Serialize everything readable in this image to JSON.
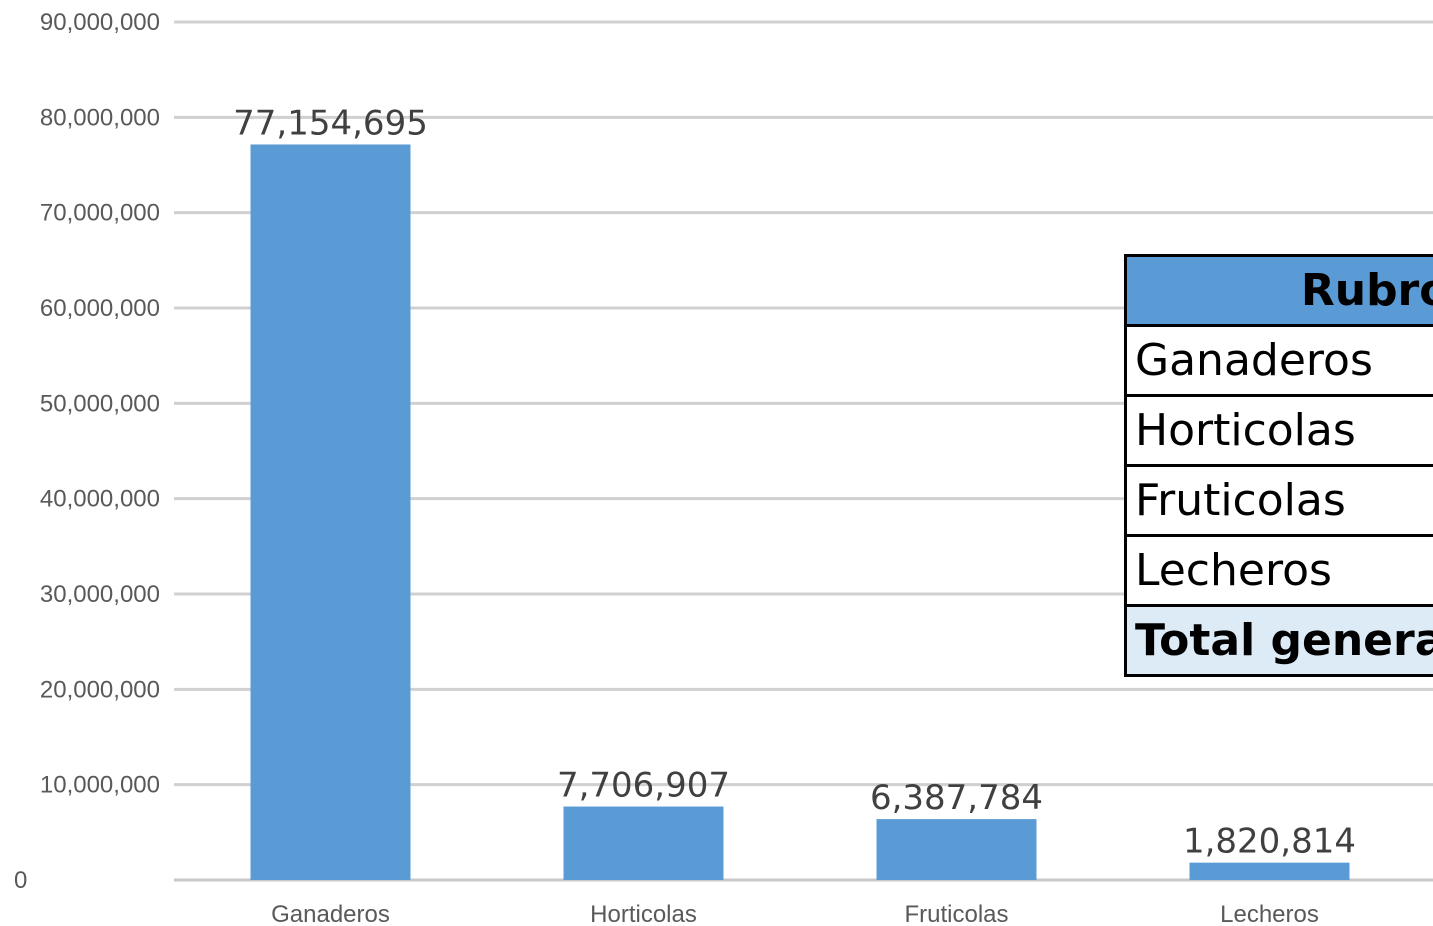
{
  "chart_data": {
    "type": "bar",
    "categories": [
      "Ganaderos",
      "Horticolas",
      "Fruticolas",
      "Lecheros"
    ],
    "values": [
      77154695,
      7706907,
      6387784,
      1820814
    ],
    "data_labels": [
      "77,154,695",
      "7,706,907",
      "6,387,784",
      "1,820,814"
    ],
    "y_ticks": [
      "0",
      "10,000,000",
      "20,000,000",
      "30,000,000",
      "40,000,000",
      "50,000,000",
      "60,000,000",
      "70,000,000",
      "80,000,000",
      "90,000,000"
    ],
    "ylim": [
      0,
      90000000
    ],
    "grid": true,
    "bar_color": "#5b9bd5"
  },
  "table": {
    "header": "Rubro",
    "rows": [
      "Ganaderos",
      "Horticolas",
      "Fruticolas",
      "Lecheros"
    ],
    "total": "Total general",
    "header_color": "#5b9bd5",
    "total_color": "#ddebf7"
  }
}
